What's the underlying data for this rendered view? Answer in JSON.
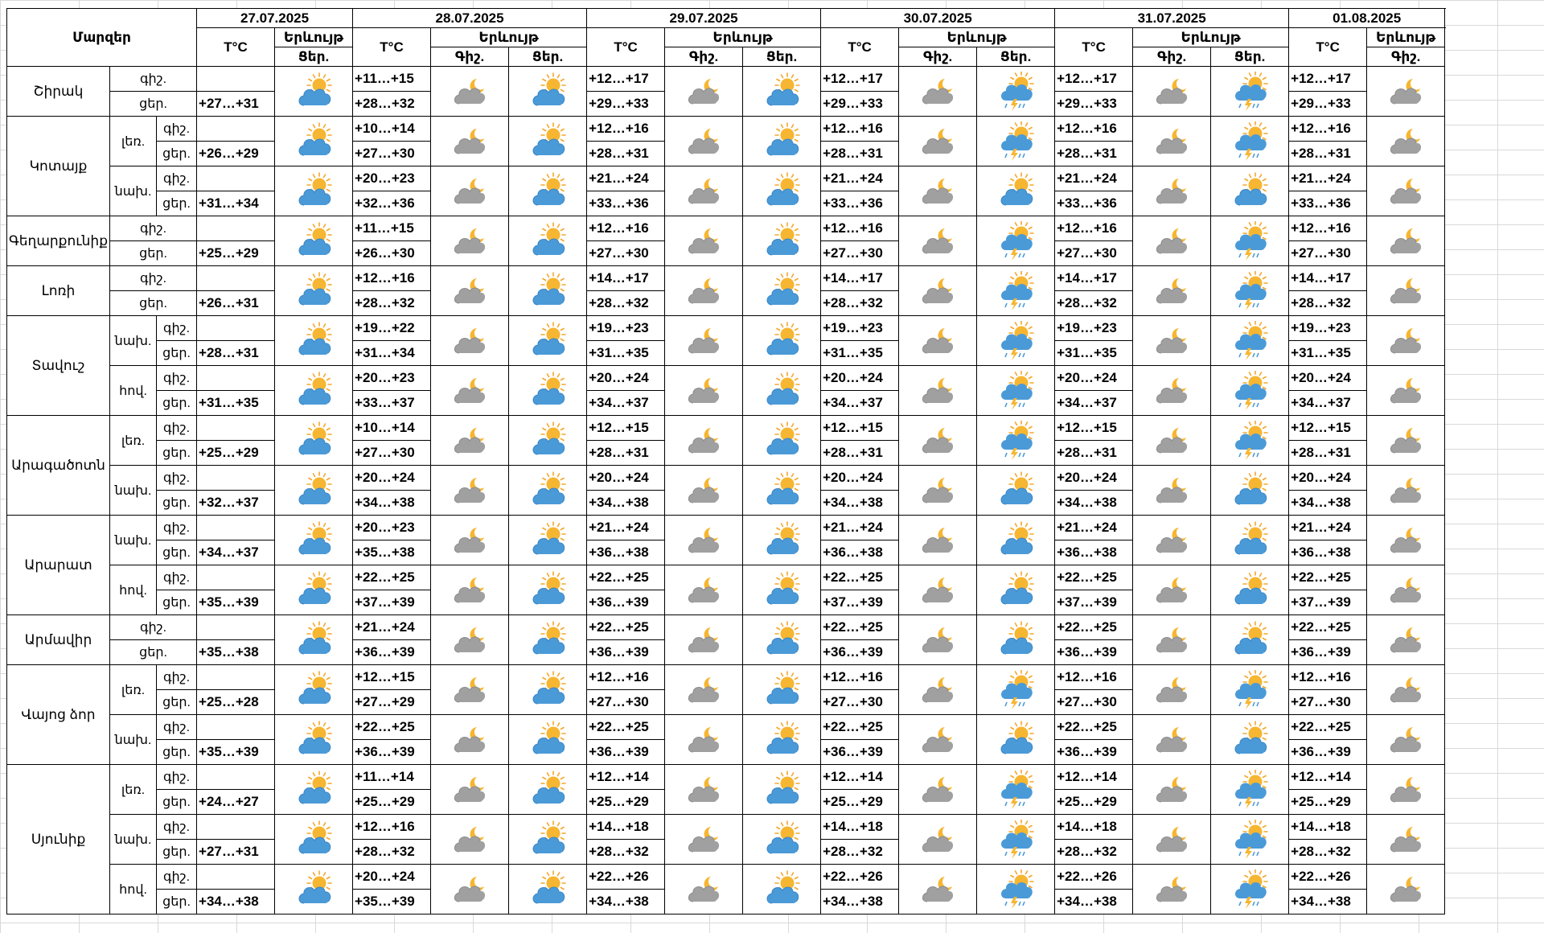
{
  "header": {
    "regions_label": "Մարզեր",
    "temp_label": "T°C",
    "weather_label": "Երևույթ",
    "day_label": "Ցեր.",
    "night_label": "Գիշ."
  },
  "dates": [
    "27.07.2025",
    "28.07.2025",
    "29.07.2025",
    "30.07.2025",
    "31.07.2025",
    "01.08.2025"
  ],
  "tod_labels": {
    "night": "գիշ.",
    "day": "ցեր."
  },
  "icon_legend": {
    "A": "night-partly-cloudy (grey cloud with moon)",
    "B": "day-partly-cloudy (sun behind blue cloud)",
    "C": "day-partly-cloudy-thunderstorm-rain"
  },
  "regions": [
    {
      "name": "Շիրակ",
      "rows": [
        {
          "sub": "",
          "night": [
            "",
            "+11…+15",
            "+12…+17",
            "+12…+17",
            "+12…+17",
            "+12…+17"
          ],
          "day": [
            "+27…+31",
            "+28…+32",
            "+29…+33",
            "+29…+33",
            "+29…+33",
            "+29…+33"
          ],
          "icons": [
            "B",
            "A",
            "B",
            "A",
            "B",
            "A",
            "C",
            "A",
            "C",
            "A",
            "C"
          ]
        }
      ]
    },
    {
      "name": "Կոտայք",
      "rows": [
        {
          "sub": "լեռ.",
          "night": [
            "",
            "+10…+14",
            "+12…+16",
            "+12…+16",
            "+12…+16",
            "+12…+16"
          ],
          "day": [
            "+26…+29",
            "+27…+30",
            "+28…+31",
            "+28…+31",
            "+28…+31",
            "+28…+31"
          ],
          "icons": [
            "B",
            "A",
            "B",
            "A",
            "B",
            "A",
            "C",
            "A",
            "C",
            "A",
            "C"
          ]
        },
        {
          "sub": "նախ.",
          "night": [
            "",
            "+20…+23",
            "+21…+24",
            "+21…+24",
            "+21…+24",
            "+21…+24"
          ],
          "day": [
            "+31…+34",
            "+32…+36",
            "+33…+36",
            "+33…+36",
            "+33…+36",
            "+33…+36"
          ],
          "icons": [
            "B",
            "A",
            "B",
            "A",
            "B",
            "A",
            "B",
            "A",
            "B",
            "A",
            "B"
          ]
        }
      ]
    },
    {
      "name": "Գեղարքունիք",
      "rows": [
        {
          "sub": "",
          "night": [
            "",
            "+11…+15",
            "+12…+16",
            "+12…+16",
            "+12…+16",
            "+12…+16"
          ],
          "day": [
            "+25…+29",
            "+26…+30",
            "+27…+30",
            "+27…+30",
            "+27…+30",
            "+27…+30"
          ],
          "icons": [
            "B",
            "A",
            "B",
            "A",
            "B",
            "A",
            "C",
            "A",
            "C",
            "A",
            "C"
          ]
        }
      ]
    },
    {
      "name": "Լոռի",
      "rows": [
        {
          "sub": "",
          "night": [
            "",
            "+12…+16",
            "+14…+17",
            "+14…+17",
            "+14…+17",
            "+14…+17"
          ],
          "day": [
            "+26…+31",
            "+28…+32",
            "+28…+32",
            "+28…+32",
            "+28…+32",
            "+28…+32"
          ],
          "icons": [
            "B",
            "A",
            "B",
            "A",
            "B",
            "A",
            "C",
            "A",
            "C",
            "A",
            "C"
          ]
        }
      ]
    },
    {
      "name": "Տավուշ",
      "rows": [
        {
          "sub": "նախ.",
          "night": [
            "",
            "+19…+22",
            "+19…+23",
            "+19…+23",
            "+19…+23",
            "+19…+23"
          ],
          "day": [
            "+28…+31",
            "+31…+34",
            "+31…+35",
            "+31…+35",
            "+31…+35",
            "+31…+35"
          ],
          "icons": [
            "B",
            "A",
            "B",
            "A",
            "B",
            "A",
            "C",
            "A",
            "C",
            "A",
            "C"
          ]
        },
        {
          "sub": "հով.",
          "night": [
            "",
            "+20…+23",
            "+20…+24",
            "+20…+24",
            "+20…+24",
            "+20…+24"
          ],
          "day": [
            "+31…+35",
            "+33…+37",
            "+34…+37",
            "+34…+37",
            "+34…+37",
            "+34…+37"
          ],
          "icons": [
            "B",
            "A",
            "B",
            "A",
            "B",
            "A",
            "C",
            "A",
            "C",
            "A",
            "C"
          ]
        }
      ]
    },
    {
      "name": "Արագածոտն",
      "rows": [
        {
          "sub": "լեռ.",
          "night": [
            "",
            "+10…+14",
            "+12…+15",
            "+12…+15",
            "+12…+15",
            "+12…+15"
          ],
          "day": [
            "+25…+29",
            "+27…+30",
            "+28…+31",
            "+28…+31",
            "+28…+31",
            "+28…+31"
          ],
          "icons": [
            "B",
            "A",
            "B",
            "A",
            "B",
            "A",
            "C",
            "A",
            "C",
            "A",
            "C"
          ]
        },
        {
          "sub": "նախ.",
          "night": [
            "",
            "+20…+24",
            "+20…+24",
            "+20…+24",
            "+20…+24",
            "+20…+24"
          ],
          "day": [
            "+32…+37",
            "+34…+38",
            "+34…+38",
            "+34…+38",
            "+34…+38",
            "+34…+38"
          ],
          "icons": [
            "B",
            "A",
            "B",
            "A",
            "B",
            "A",
            "B",
            "A",
            "B",
            "A",
            "B"
          ]
        }
      ]
    },
    {
      "name": "Արարատ",
      "rows": [
        {
          "sub": "նախ.",
          "night": [
            "",
            "+20…+23",
            "+21…+24",
            "+21…+24",
            "+21…+24",
            "+21…+24"
          ],
          "day": [
            "+34…+37",
            "+35…+38",
            "+36…+38",
            "+36…+38",
            "+36…+38",
            "+36…+38"
          ],
          "icons": [
            "B",
            "A",
            "B",
            "A",
            "B",
            "A",
            "B",
            "A",
            "B",
            "A",
            "B"
          ]
        },
        {
          "sub": "հով.",
          "night": [
            "",
            "+22…+25",
            "+22…+25",
            "+22…+25",
            "+22…+25",
            "+22…+25"
          ],
          "day": [
            "+35…+39",
            "+37…+39",
            "+36…+39",
            "+37…+39",
            "+37…+39",
            "+37…+39"
          ],
          "icons": [
            "B",
            "A",
            "B",
            "A",
            "B",
            "A",
            "B",
            "A",
            "B",
            "A",
            "B"
          ]
        }
      ]
    },
    {
      "name": "Արմավիր",
      "rows": [
        {
          "sub": "",
          "night": [
            "",
            "+21…+24",
            "+22…+25",
            "+22…+25",
            "+22…+25",
            "+22…+25"
          ],
          "day": [
            "+35…+38",
            "+36…+39",
            "+36…+39",
            "+36…+39",
            "+36…+39",
            "+36…+39"
          ],
          "icons": [
            "B",
            "A",
            "B",
            "A",
            "B",
            "A",
            "B",
            "A",
            "B",
            "A",
            "B"
          ]
        }
      ]
    },
    {
      "name": "Վայոց ձոր",
      "rows": [
        {
          "sub": "լեռ.",
          "night": [
            "",
            "+12…+15",
            "+12…+16",
            "+12…+16",
            "+12…+16",
            "+12…+16"
          ],
          "day": [
            "+25…+28",
            "+27…+29",
            "+27…+30",
            "+27…+30",
            "+27…+30",
            "+27…+30"
          ],
          "icons": [
            "B",
            "A",
            "B",
            "A",
            "B",
            "A",
            "C",
            "A",
            "C",
            "A",
            "C"
          ]
        },
        {
          "sub": "նախ.",
          "night": [
            "",
            "+22…+25",
            "+22…+25",
            "+22…+25",
            "+22…+25",
            "+22…+25"
          ],
          "day": [
            "+35…+39",
            "+36…+39",
            "+36…+39",
            "+36…+39",
            "+36…+39",
            "+36…+39"
          ],
          "icons": [
            "B",
            "A",
            "B",
            "A",
            "B",
            "A",
            "B",
            "A",
            "B",
            "A",
            "B"
          ]
        }
      ]
    },
    {
      "name": "Սյունիք",
      "rows": [
        {
          "sub": "լեռ.",
          "night": [
            "",
            "+11…+14",
            "+12…+14",
            "+12…+14",
            "+12…+14",
            "+12…+14"
          ],
          "day": [
            "+24…+27",
            "+25…+29",
            "+25…+29",
            "+25…+29",
            "+25…+29",
            "+25…+29"
          ],
          "icons": [
            "B",
            "A",
            "B",
            "A",
            "B",
            "A",
            "C",
            "A",
            "C",
            "A",
            "C"
          ]
        },
        {
          "sub": "նախ.",
          "night": [
            "",
            "+12…+16",
            "+14…+18",
            "+14…+18",
            "+14…+18",
            "+14…+18"
          ],
          "day": [
            "+27…+31",
            "+28…+32",
            "+28…+32",
            "+28…+32",
            "+28…+32",
            "+28…+32"
          ],
          "icons": [
            "B",
            "A",
            "B",
            "A",
            "B",
            "A",
            "C",
            "A",
            "C",
            "A",
            "C"
          ]
        },
        {
          "sub": "հով.",
          "night": [
            "",
            "+20…+24",
            "+22…+26",
            "+22…+26",
            "+22…+26",
            "+22…+26"
          ],
          "day": [
            "+34…+38",
            "+35…+39",
            "+34…+38",
            "+34…+38",
            "+34…+38",
            "+34…+38"
          ],
          "icons": [
            "B",
            "A",
            "B",
            "A",
            "B",
            "A",
            "C",
            "A",
            "C",
            "A",
            "C"
          ]
        }
      ]
    }
  ]
}
